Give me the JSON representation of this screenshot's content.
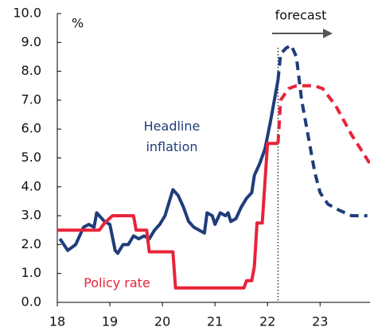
{
  "chart_data": {
    "type": "line",
    "unit_label": "%",
    "forecast_label": "forecast",
    "forecast_x": 22.2,
    "xlim": [
      18,
      23.95
    ],
    "xticks": [
      18,
      19,
      20,
      21,
      22,
      23
    ],
    "ylim": [
      0,
      10
    ],
    "yticks": [
      {
        "value": 0,
        "label": "0.0"
      },
      {
        "value": 1,
        "label": "1.0"
      },
      {
        "value": 2,
        "label": "2.0"
      },
      {
        "value": 3,
        "label": "3.0"
      },
      {
        "value": 4,
        "label": "4.0"
      },
      {
        "value": 5,
        "label": "5.0"
      },
      {
        "value": 6,
        "label": "6.0"
      },
      {
        "value": 7,
        "label": "7.0"
      },
      {
        "value": 8,
        "label": "8.0"
      },
      {
        "value": 9,
        "label": "9.0"
      },
      {
        "value": 10,
        "label": "10.0"
      }
    ],
    "series": [
      {
        "name": "Headline inflation",
        "color": "#1f3d7a",
        "x": [
          18.05,
          18.2,
          18.35,
          18.5,
          18.6,
          18.7,
          18.75,
          18.9,
          19.0,
          19.1,
          19.15,
          19.25,
          19.35,
          19.45,
          19.55,
          19.65,
          19.75,
          19.85,
          19.95,
          20.05,
          20.15,
          20.2,
          20.3,
          20.4,
          20.5,
          20.6,
          20.7,
          20.8,
          20.85,
          20.95,
          21.0,
          21.1,
          21.2,
          21.25,
          21.3,
          21.4,
          21.5,
          21.6,
          21.7,
          21.75,
          21.85,
          21.95,
          22.05,
          22.1,
          22.2,
          22.25,
          22.35,
          22.45,
          22.55,
          22.65,
          22.8,
          22.9,
          23.0,
          23.15,
          23.35,
          23.6,
          23.9
        ],
        "values": [
          2.2,
          1.8,
          2.0,
          2.6,
          2.7,
          2.6,
          3.1,
          2.8,
          2.7,
          1.8,
          1.7,
          2.0,
          2.0,
          2.3,
          2.2,
          2.3,
          2.2,
          2.5,
          2.7,
          3.0,
          3.6,
          3.9,
          3.7,
          3.3,
          2.8,
          2.6,
          2.5,
          2.4,
          3.1,
          3.0,
          2.7,
          3.1,
          3.0,
          3.1,
          2.8,
          2.9,
          3.3,
          3.6,
          3.8,
          4.4,
          4.8,
          5.3,
          6.2,
          6.7,
          7.7,
          8.6,
          8.8,
          8.9,
          8.5,
          7.0,
          5.5,
          4.5,
          3.8,
          3.4,
          3.2,
          3.0,
          3.0
        ]
      },
      {
        "name": "Policy rate",
        "color": "#e8233a",
        "x": [
          18.0,
          18.8,
          18.9,
          19.05,
          19.45,
          19.5,
          19.7,
          19.75,
          20.2,
          20.25,
          21.4,
          21.55,
          21.6,
          21.7,
          21.75,
          21.8,
          21.9,
          22.0,
          22.2,
          22.25,
          22.4,
          22.55,
          22.9,
          23.05,
          23.3,
          23.6,
          23.95
        ],
        "values": [
          2.5,
          2.5,
          2.75,
          3.0,
          3.0,
          2.5,
          2.5,
          1.75,
          1.75,
          0.5,
          0.5,
          0.5,
          0.75,
          0.75,
          1.25,
          2.75,
          2.75,
          5.5,
          5.5,
          7.0,
          7.4,
          7.5,
          7.5,
          7.4,
          6.8,
          5.8,
          4.8
        ]
      }
    ]
  }
}
